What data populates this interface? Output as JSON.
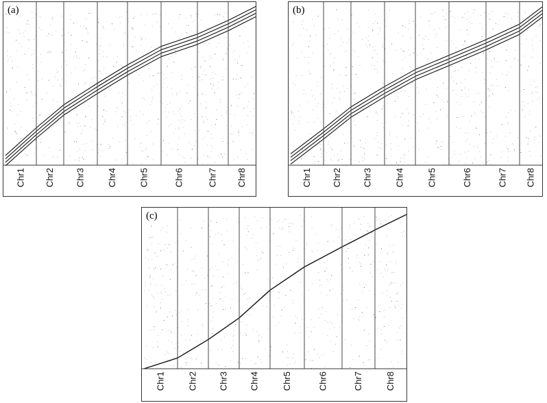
{
  "panels": [
    {
      "label": "(a)"
    },
    {
      "label": "(b)"
    },
    {
      "label": "(c)"
    }
  ],
  "chart_data": [
    {
      "type": "scatter",
      "panel": "(a)",
      "categories": [
        "Chr1",
        "Chr2",
        "Chr3",
        "Chr4",
        "Chr5",
        "Chr6",
        "Chr7",
        "Chr8"
      ],
      "copies_per_chromosome": 4,
      "x": [
        0,
        1,
        2,
        3,
        4,
        5,
        6,
        7,
        8
      ],
      "y": [
        0.03,
        0.21,
        0.36,
        0.5,
        0.62,
        0.74,
        0.82,
        0.91,
        1.0
      ],
      "grid": false
    },
    {
      "type": "scatter",
      "panel": "(b)",
      "categories": [
        "Chr1",
        "Chr2",
        "Chr3",
        "Chr4",
        "Chr5",
        "Chr6",
        "Chr7",
        "Chr8"
      ],
      "copies_per_chromosome": 4,
      "x": [
        0,
        1,
        2,
        3,
        4,
        5,
        6,
        7,
        8
      ],
      "y": [
        0.04,
        0.2,
        0.34,
        0.47,
        0.58,
        0.67,
        0.77,
        0.87,
        0.98
      ],
      "grid": false
    },
    {
      "type": "scatter",
      "panel": "(c)",
      "categories": [
        "Chr1",
        "Chr2",
        "Chr3",
        "Chr4",
        "Chr5",
        "Chr6",
        "Chr7",
        "Chr8"
      ],
      "copies_per_chromosome": 1,
      "x": [
        0,
        1,
        2,
        3,
        4,
        5,
        6,
        7,
        8
      ],
      "y": [
        0.0,
        0.07,
        0.19,
        0.33,
        0.51,
        0.66,
        0.79,
        0.9,
        1.0
      ],
      "grid": false
    }
  ]
}
